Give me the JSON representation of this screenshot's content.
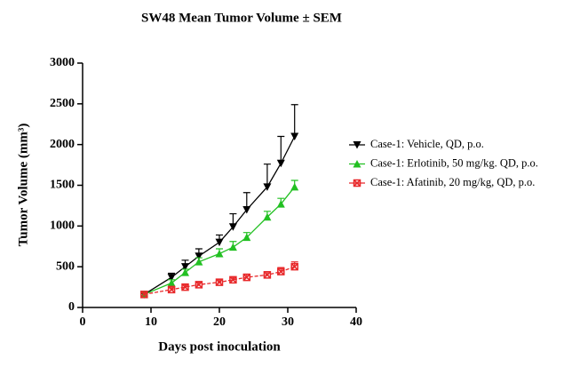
{
  "chart_data": {
    "type": "line",
    "title": "SW48 Mean Tumor Volume ± SEM",
    "x_label": "Days post inoculation",
    "y_label": "Tumor Volume (mm³)",
    "x": [
      9,
      13,
      15,
      17,
      20,
      22,
      24,
      27,
      29,
      31
    ],
    "xlim": [
      0,
      40
    ],
    "xticks": [
      0,
      10,
      20,
      30,
      40
    ],
    "ylim": [
      0,
      3000
    ],
    "yticks": [
      0,
      500,
      1000,
      1500,
      2000,
      2500,
      3000
    ],
    "grid": false,
    "legend": "right",
    "series": [
      {
        "name": "Case-1: Vehicle, QD, p.o.",
        "color": "#000000",
        "marker": "triangle-down",
        "dash": false,
        "values": [
          160,
          370,
          500,
          630,
          800,
          990,
          1200,
          1480,
          1770,
          2100
        ],
        "errors": [
          20,
          50,
          80,
          90,
          90,
          160,
          210,
          280,
          330,
          390
        ]
      },
      {
        "name": "Case-1: Erlotinib, 50 mg/kg. QD, p.o.",
        "color": "#22c022",
        "marker": "triangle-up",
        "dash": false,
        "values": [
          160,
          300,
          430,
          560,
          660,
          740,
          860,
          1110,
          1270,
          1480
        ],
        "errors": [
          20,
          40,
          40,
          50,
          60,
          70,
          60,
          70,
          70,
          80
        ]
      },
      {
        "name": "Case-1: Afatinib, 20 mg/kg, QD, p.o.",
        "color": "#e8282a",
        "marker": "square",
        "dash": true,
        "values": [
          160,
          220,
          250,
          280,
          310,
          340,
          370,
          400,
          440,
          500
        ],
        "errors": [
          20,
          30,
          30,
          30,
          30,
          30,
          40,
          40,
          50,
          60
        ]
      }
    ]
  }
}
